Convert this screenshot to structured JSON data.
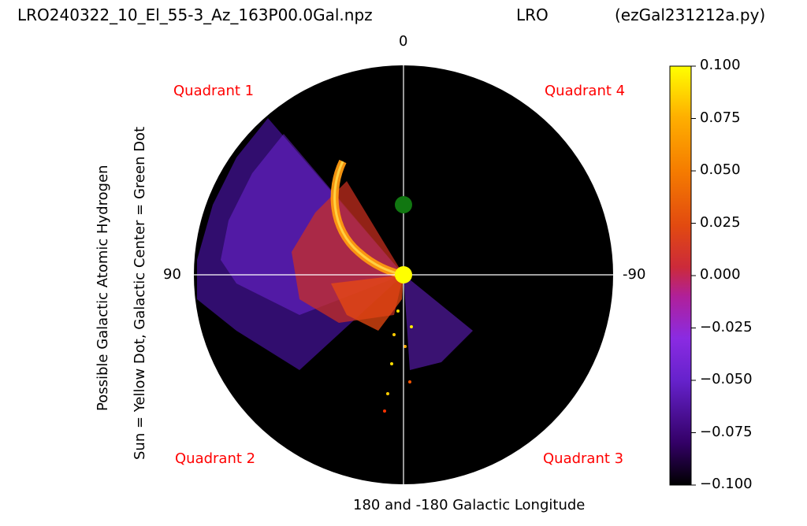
{
  "header": {
    "filename": "LRO240322_10_El_55-3_Az_163P00.0Gal.npz",
    "station": "LRO",
    "program": "(ezGal231212a.py)"
  },
  "chart_data": {
    "type": "heatmap",
    "projection": "polar",
    "ylabel_line1": "Possible Galactic Atomic Hydrogen",
    "ylabel_line2": "Sun = Yellow Dot, Galactic Center = Green Dot",
    "xlabel": "180 and -180 Galactic Longitude",
    "angle_labels": {
      "top": "0",
      "left": "90",
      "right": "-90"
    },
    "quadrants": [
      "Quadrant 1",
      "Quadrant 4",
      "Quadrant 2",
      "Quadrant 3"
    ],
    "quadrant_color": "#ff0000",
    "background_color": "#000000",
    "sun_color": "#ffff00",
    "galactic_center_color": "#117711",
    "colormap": "gnuplot",
    "colorbar": {
      "vmin": -0.1,
      "vmax": 0.1,
      "ticks": [
        "0.100",
        "0.075",
        "0.050",
        "0.025",
        "0.000",
        "−0.025",
        "−0.050",
        "−0.075",
        "−0.100"
      ]
    }
  }
}
